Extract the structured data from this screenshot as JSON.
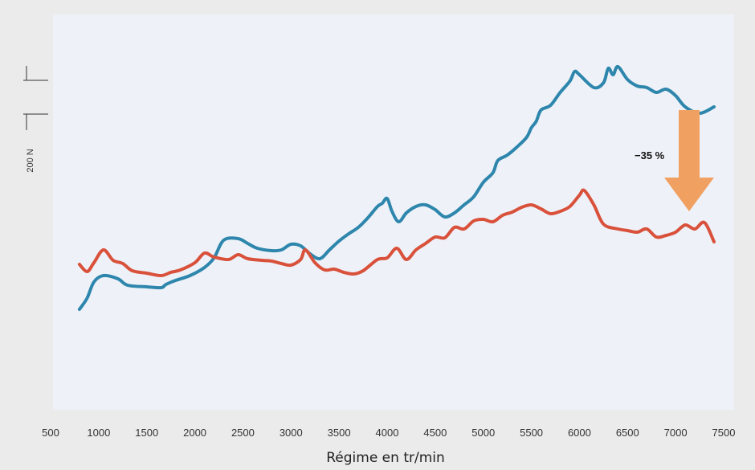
{
  "chart_data": {
    "type": "line",
    "title": "",
    "xlabel": "Régime en tr/min",
    "ylabel": "",
    "xlim": [
      500,
      7500
    ],
    "x_ticks": [
      500,
      1000,
      1500,
      2000,
      2500,
      3000,
      3500,
      4000,
      4500,
      5000,
      5500,
      6000,
      6500,
      7000,
      7500
    ],
    "scale_bar_label": "200 N",
    "grid": false,
    "legend": "none",
    "colors": {
      "series_blue": "#2e86ad",
      "series_red": "#d9513b",
      "arrow": "#f0a060",
      "plot_bg": "#eef2f8",
      "page_bg": "#ebebeb"
    },
    "annotation": {
      "text": "−35 %"
    },
    "series": [
      {
        "color": "#2e86ad",
        "points": [
          [
            800,
            310
          ],
          [
            880,
            296
          ],
          [
            950,
            276
          ],
          [
            1050,
            268
          ],
          [
            1200,
            272
          ],
          [
            1300,
            280
          ],
          [
            1500,
            282
          ],
          [
            1650,
            283
          ],
          [
            1700,
            279
          ],
          [
            1800,
            274
          ],
          [
            1950,
            268
          ],
          [
            2100,
            258
          ],
          [
            2200,
            246
          ],
          [
            2300,
            224
          ],
          [
            2450,
            222
          ],
          [
            2550,
            228
          ],
          [
            2650,
            234
          ],
          [
            2800,
            237
          ],
          [
            2900,
            236
          ],
          [
            3000,
            229
          ],
          [
            3100,
            231
          ],
          [
            3200,
            241
          ],
          [
            3300,
            247
          ],
          [
            3400,
            236
          ],
          [
            3500,
            225
          ],
          [
            3600,
            216
          ],
          [
            3700,
            208
          ],
          [
            3800,
            196
          ],
          [
            3900,
            182
          ],
          [
            3950,
            178
          ],
          [
            4000,
            172
          ],
          [
            4050,
            188
          ],
          [
            4120,
            201
          ],
          [
            4200,
            190
          ],
          [
            4300,
            182
          ],
          [
            4400,
            180
          ],
          [
            4500,
            186
          ],
          [
            4600,
            195
          ],
          [
            4700,
            190
          ],
          [
            4800,
            180
          ],
          [
            4900,
            170
          ],
          [
            5000,
            152
          ],
          [
            5100,
            140
          ],
          [
            5150,
            125
          ],
          [
            5250,
            118
          ],
          [
            5350,
            108
          ],
          [
            5450,
            96
          ],
          [
            5500,
            84
          ],
          [
            5550,
            76
          ],
          [
            5600,
            62
          ],
          [
            5700,
            56
          ],
          [
            5800,
            40
          ],
          [
            5900,
            26
          ],
          [
            5950,
            14
          ],
          [
            6000,
            18
          ],
          [
            6150,
            34
          ],
          [
            6250,
            28
          ],
          [
            6300,
            10
          ],
          [
            6350,
            18
          ],
          [
            6400,
            8
          ],
          [
            6500,
            24
          ],
          [
            6600,
            32
          ],
          [
            6700,
            34
          ],
          [
            6800,
            40
          ],
          [
            6900,
            36
          ],
          [
            7000,
            44
          ],
          [
            7100,
            58
          ],
          [
            7250,
            66
          ],
          [
            7400,
            58
          ]
        ]
      },
      {
        "color": "#d9513b",
        "points": [
          [
            800,
            254
          ],
          [
            880,
            263
          ],
          [
            950,
            252
          ],
          [
            1050,
            236
          ],
          [
            1150,
            249
          ],
          [
            1250,
            253
          ],
          [
            1350,
            262
          ],
          [
            1500,
            265
          ],
          [
            1650,
            268
          ],
          [
            1750,
            264
          ],
          [
            1850,
            261
          ],
          [
            2000,
            252
          ],
          [
            2100,
            240
          ],
          [
            2200,
            245
          ],
          [
            2350,
            248
          ],
          [
            2450,
            242
          ],
          [
            2550,
            247
          ],
          [
            2700,
            249
          ],
          [
            2800,
            250
          ],
          [
            2900,
            253
          ],
          [
            3000,
            255
          ],
          [
            3100,
            248
          ],
          [
            3150,
            236
          ],
          [
            3250,
            252
          ],
          [
            3350,
            261
          ],
          [
            3450,
            260
          ],
          [
            3550,
            264
          ],
          [
            3650,
            266
          ],
          [
            3750,
            262
          ],
          [
            3900,
            248
          ],
          [
            4000,
            246
          ],
          [
            4100,
            234
          ],
          [
            4200,
            248
          ],
          [
            4300,
            236
          ],
          [
            4400,
            228
          ],
          [
            4500,
            220
          ],
          [
            4600,
            221
          ],
          [
            4700,
            208
          ],
          [
            4800,
            210
          ],
          [
            4900,
            200
          ],
          [
            5000,
            198
          ],
          [
            5100,
            201
          ],
          [
            5200,
            193
          ],
          [
            5300,
            189
          ],
          [
            5400,
            183
          ],
          [
            5500,
            180
          ],
          [
            5600,
            185
          ],
          [
            5700,
            191
          ],
          [
            5800,
            188
          ],
          [
            5900,
            182
          ],
          [
            6000,
            168
          ],
          [
            6050,
            162
          ],
          [
            6150,
            180
          ],
          [
            6250,
            204
          ],
          [
            6400,
            210
          ],
          [
            6500,
            212
          ],
          [
            6600,
            214
          ],
          [
            6700,
            210
          ],
          [
            6800,
            220
          ],
          [
            6900,
            218
          ],
          [
            7000,
            214
          ],
          [
            7100,
            205
          ],
          [
            7200,
            210
          ],
          [
            7300,
            202
          ],
          [
            7400,
            226
          ]
        ]
      }
    ]
  }
}
